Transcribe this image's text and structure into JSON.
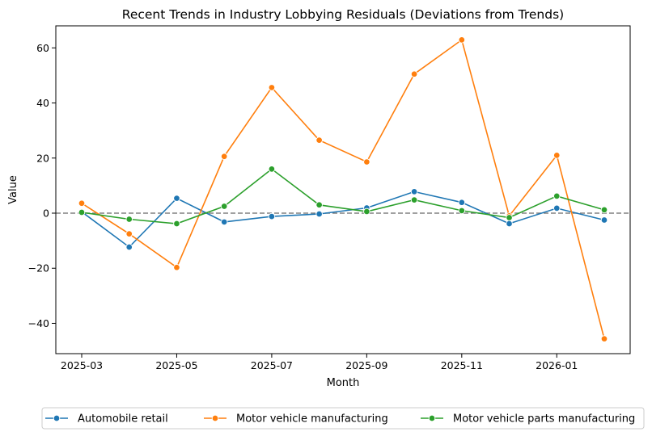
{
  "chart_data": {
    "type": "line",
    "title": "Recent Trends in Industry Lobbying Residuals (Deviations from Trends)",
    "xlabel": "Month",
    "ylabel": "Value",
    "x": [
      "2025-03",
      "2025-04",
      "2025-05",
      "2025-06",
      "2025-07",
      "2025-08",
      "2025-09",
      "2025-10",
      "2025-11",
      "2025-12",
      "2026-01",
      "2026-02"
    ],
    "x_tick_labels": [
      "2025-03",
      "2025-05",
      "2025-07",
      "2025-09",
      "2025-11",
      "2026-01"
    ],
    "y_ticks": [
      -40,
      -20,
      0,
      20,
      40,
      60
    ],
    "ylim": [
      -51,
      68
    ],
    "reference_line": 0,
    "legend_position": "bottom-center",
    "grid": false,
    "series": [
      {
        "name": "Automobile retail",
        "color": "#1f77b4",
        "values": [
          0.5,
          -12.3,
          5.4,
          -3.2,
          -1.2,
          -0.3,
          1.9,
          7.8,
          3.9,
          -3.8,
          1.8,
          -2.5
        ]
      },
      {
        "name": "Motor vehicle manufacturing",
        "color": "#ff7f0e",
        "values": [
          3.6,
          -7.5,
          -19.7,
          20.6,
          45.6,
          26.5,
          18.6,
          50.5,
          62.9,
          -1.0,
          21.0,
          -45.6
        ]
      },
      {
        "name": "Motor vehicle parts manufacturing",
        "color": "#2ca02c",
        "values": [
          0.3,
          -2.2,
          -3.8,
          2.5,
          16.0,
          3.0,
          0.6,
          4.8,
          0.9,
          -1.6,
          6.2,
          1.2
        ]
      }
    ]
  }
}
